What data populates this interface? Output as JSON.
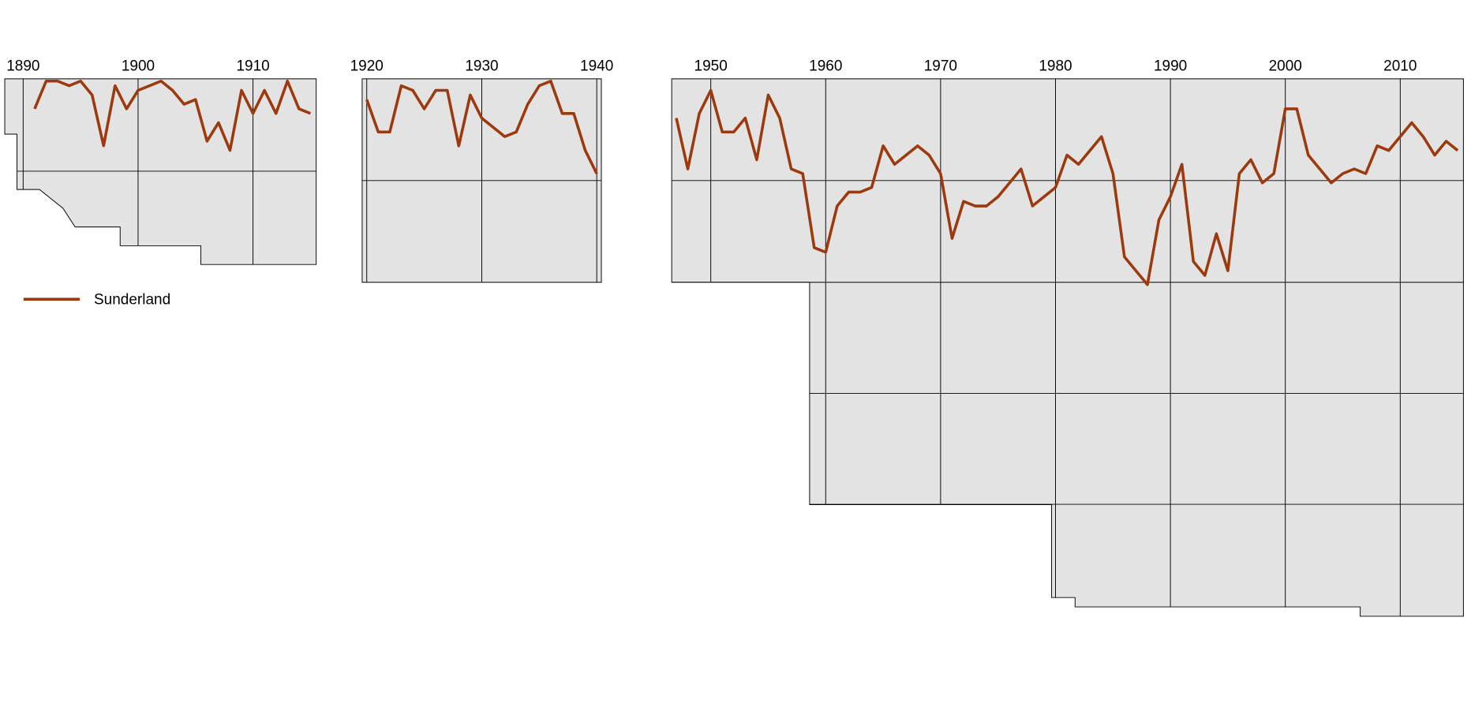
{
  "chart_data": [
    {
      "type": "line",
      "xlim": [
        1888.4,
        1915.5
      ],
      "xticks": [
        1890,
        1900,
        1910
      ],
      "ylim": [
        0.5,
        40.5
      ],
      "yticks": [
        20.5
      ],
      "y_inverted": true,
      "grid": true,
      "x": [
        1891,
        1892,
        1893,
        1894,
        1895,
        1896,
        1897,
        1898,
        1899,
        1900,
        1901,
        1902,
        1903,
        1904,
        1905,
        1906,
        1907,
        1908,
        1909,
        1910,
        1911,
        1912,
        1913,
        1914,
        1915
      ],
      "series": [
        {
          "name": "Sunderland",
          "color": "#9c3a0e",
          "values": [
            7,
            1,
            1,
            2,
            1,
            4,
            15,
            2,
            7,
            3,
            2,
            1,
            3,
            6,
            5,
            14,
            10,
            16,
            3,
            8,
            3,
            8,
            1,
            7,
            8
          ]
        }
      ]
    },
    {
      "type": "line",
      "xlim": [
        1919.6,
        1940.4
      ],
      "xticks": [
        1920,
        1930,
        1940
      ],
      "ylim": [
        0.5,
        44.5
      ],
      "yticks": [
        22.5
      ],
      "y_inverted": true,
      "grid": true,
      "x": [
        1920,
        1921,
        1922,
        1923,
        1924,
        1925,
        1926,
        1927,
        1928,
        1929,
        1930,
        1931,
        1932,
        1933,
        1934,
        1935,
        1936,
        1937,
        1938,
        1939,
        1940
      ],
      "series": [
        {
          "color": "#9c3a0e",
          "values": [
            5,
            12,
            12,
            2,
            3,
            7,
            3,
            3,
            15,
            4,
            9,
            11,
            13,
            12,
            6,
            2,
            1,
            8,
            8,
            16,
            21
          ]
        }
      ]
    },
    {
      "type": "line",
      "xlim": [
        1946.6,
        2015.5
      ],
      "xticks": [
        1950,
        1960,
        1970,
        1980,
        1990,
        2000,
        2010
      ],
      "ylim": [
        0.5,
        116.5
      ],
      "yticks": [
        22.5,
        44.5,
        68.5,
        92.5
      ],
      "y_inverted": true,
      "grid": true,
      "x": [
        1947,
        1948,
        1949,
        1950,
        1951,
        1952,
        1953,
        1954,
        1955,
        1956,
        1957,
        1958,
        1959,
        1960,
        1961,
        1962,
        1963,
        1964,
        1965,
        1966,
        1967,
        1968,
        1969,
        1970,
        1971,
        1972,
        1973,
        1974,
        1975,
        1976,
        1977,
        1978,
        1979,
        1980,
        1981,
        1982,
        1983,
        1984,
        1985,
        1986,
        1987,
        1988,
        1989,
        1990,
        1991,
        1992,
        1993,
        1994,
        1995,
        1996,
        1997,
        1998,
        1999,
        2000,
        2001,
        2002,
        2003,
        2004,
        2005,
        2006,
        2007,
        2008,
        2009,
        2010,
        2011,
        2012,
        2013,
        2014,
        2015
      ],
      "series": [
        {
          "color": "#9c3a0e",
          "values": [
            9,
            20,
            8,
            3,
            12,
            12,
            9,
            18,
            4,
            9,
            20,
            21,
            37,
            38,
            28,
            25,
            25,
            24,
            15,
            19,
            17,
            15,
            17,
            21,
            35,
            27,
            28,
            28,
            26,
            23,
            20,
            28,
            26,
            24,
            17,
            19,
            16,
            13,
            21,
            39,
            42,
            45,
            31,
            26,
            19,
            40,
            43,
            34,
            42,
            21,
            18,
            23,
            21,
            7,
            7,
            17,
            20,
            23,
            21,
            20,
            21,
            15,
            16,
            13,
            10,
            13,
            17,
            14,
            16
          ]
        }
      ]
    }
  ]
}
